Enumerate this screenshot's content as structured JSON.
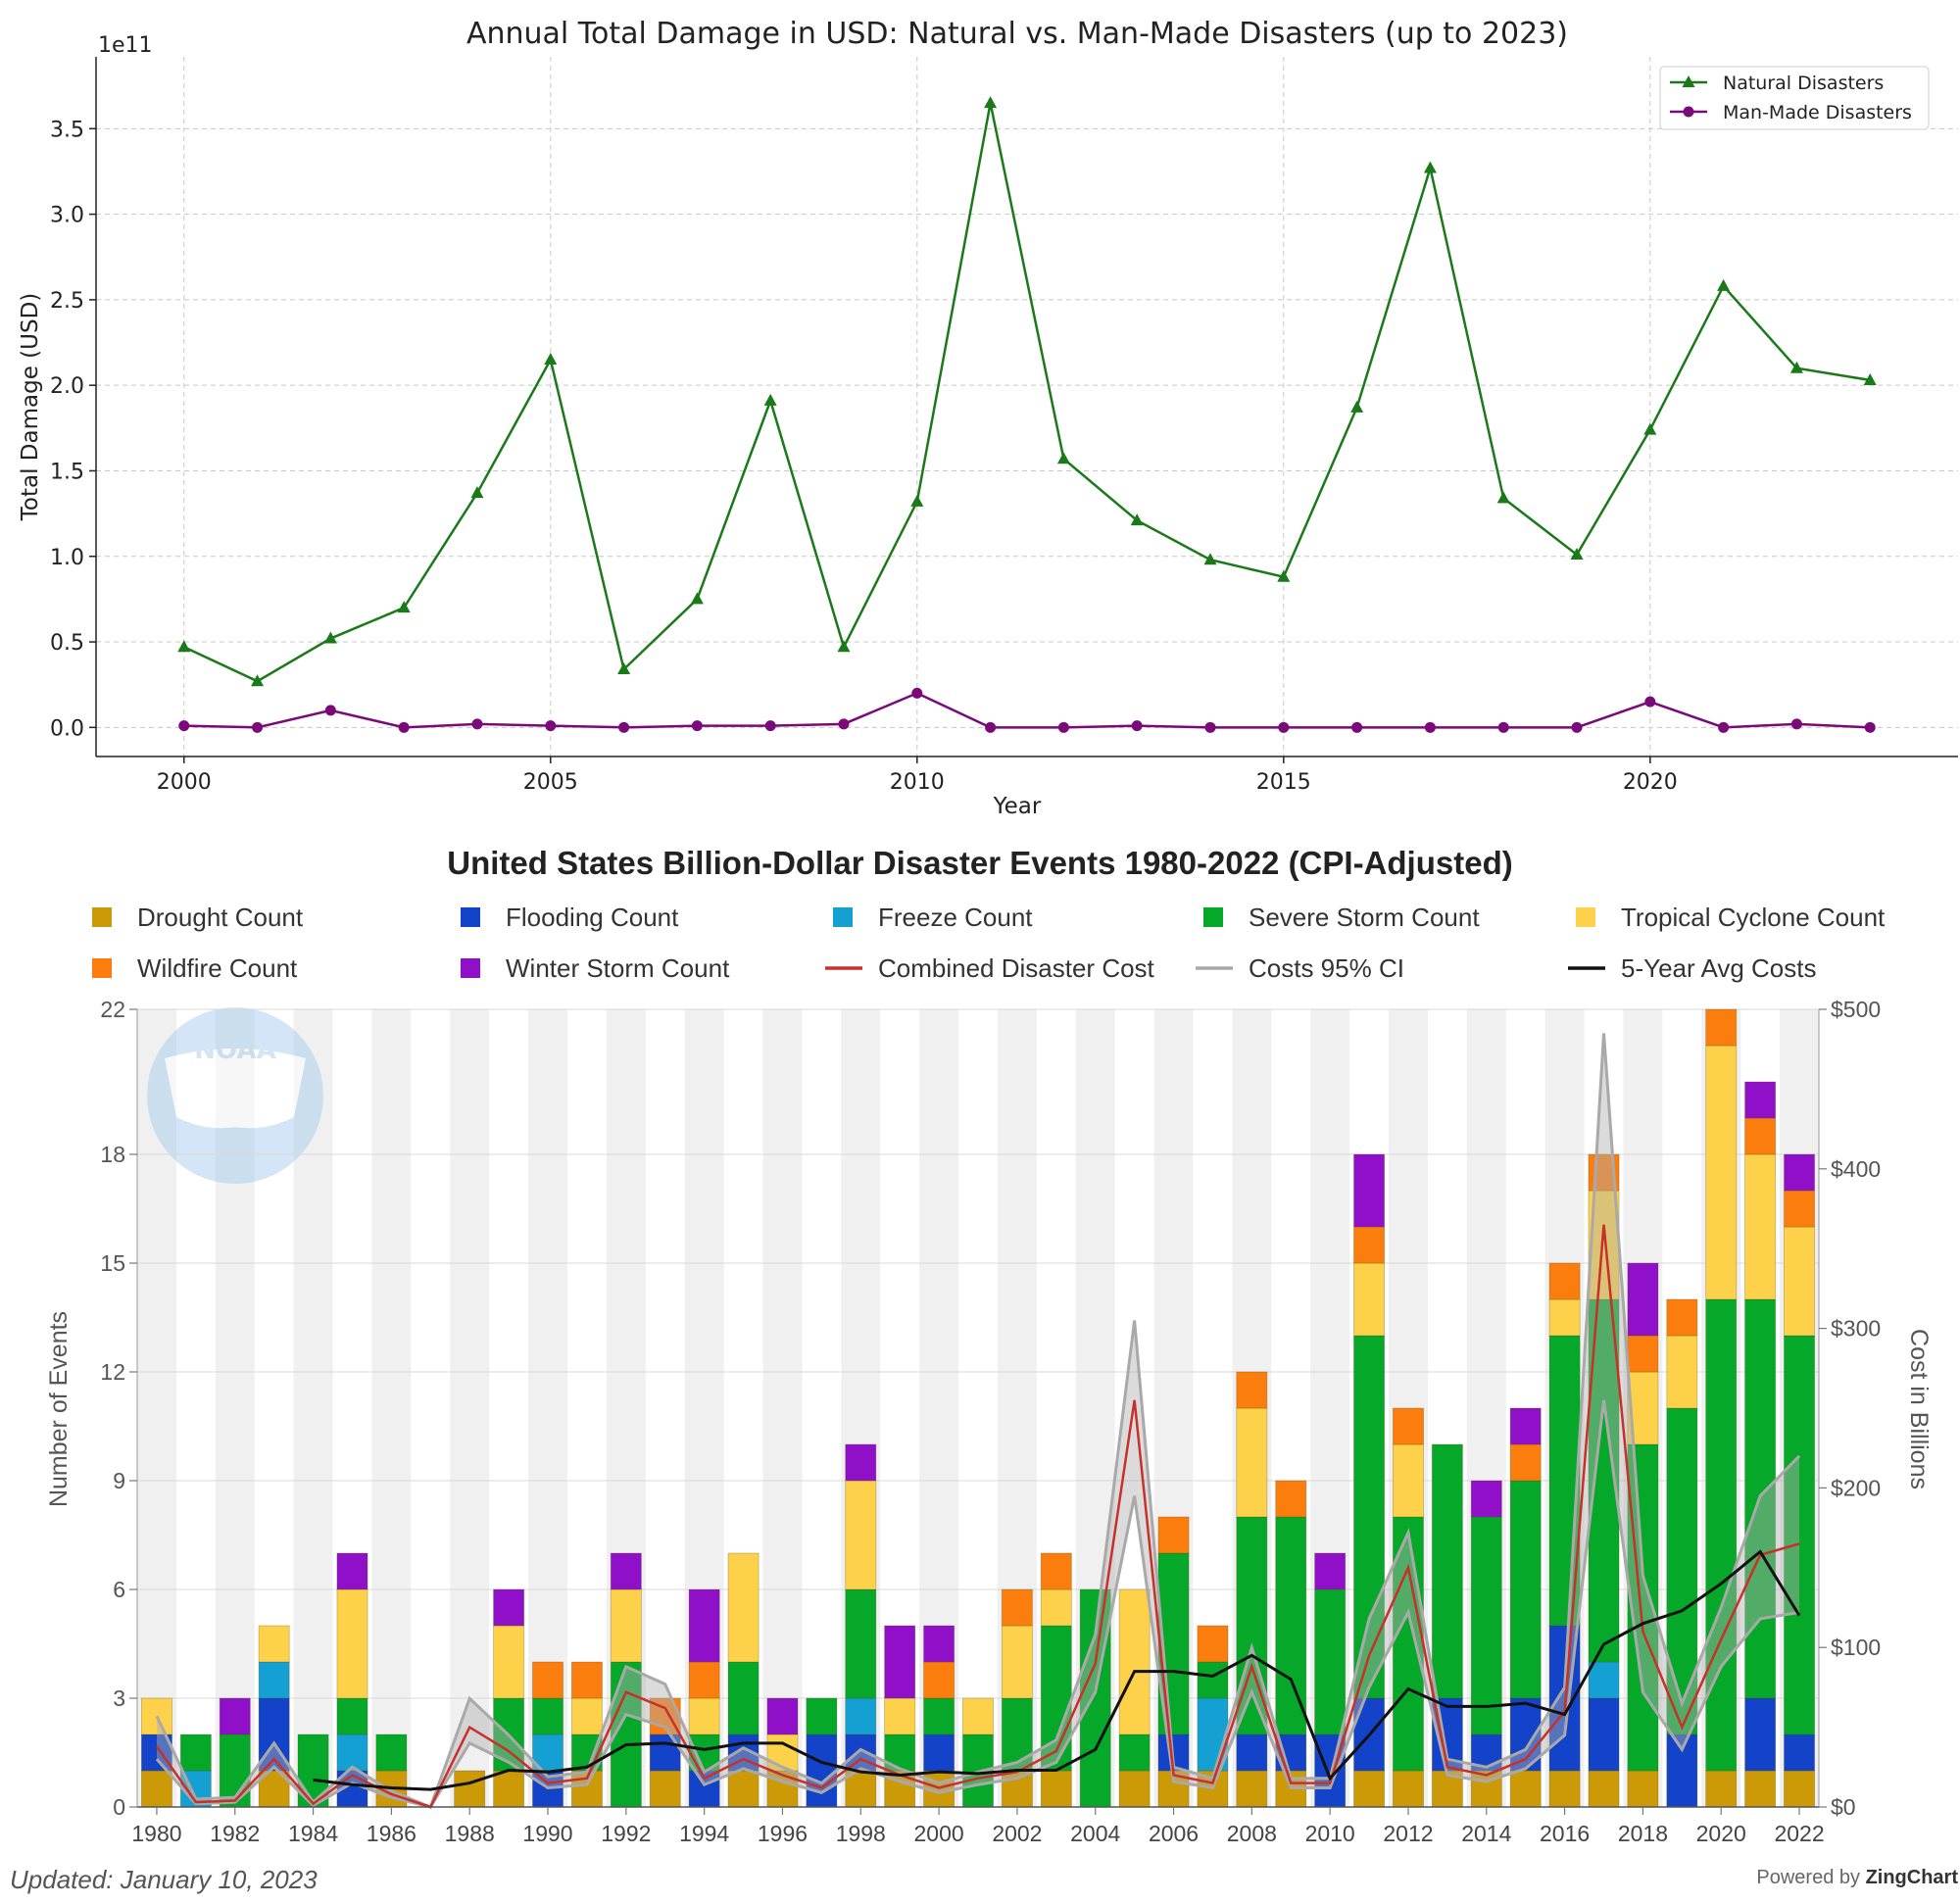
{
  "chart_data": [
    {
      "type": "line",
      "title": "Annual Total Damage in USD: Natural vs. Man-Made Disasters (up to 2023)",
      "xlabel": "Year",
      "ylabel": "Total Damage (USD)",
      "y_scale_label": "1e11",
      "ylim": [
        -0.17,
        3.92
      ],
      "xlim": [
        1998.8,
        2024.2
      ],
      "x_ticks": [
        "2000",
        "2005",
        "2010",
        "2015",
        "2020"
      ],
      "y_ticks": [
        "0.0",
        "0.5",
        "1.0",
        "1.5",
        "2.0",
        "2.5",
        "3.0",
        "3.5"
      ],
      "grid": true,
      "legend_position": "top-right",
      "x": [
        2000,
        2001,
        2002,
        2003,
        2004,
        2005,
        2006,
        2007,
        2008,
        2009,
        2010,
        2011,
        2012,
        2013,
        2014,
        2015,
        2016,
        2017,
        2018,
        2019,
        2020,
        2021,
        2022,
        2023
      ],
      "series": [
        {
          "name": "Natural Disasters",
          "color": "#1a7a1a",
          "marker": "triangle",
          "values": [
            0.47,
            0.27,
            0.52,
            0.7,
            1.37,
            2.15,
            0.34,
            0.75,
            1.91,
            0.47,
            1.32,
            3.65,
            1.57,
            1.21,
            0.98,
            0.88,
            1.87,
            3.27,
            1.34,
            1.01,
            1.74,
            2.58,
            2.1,
            2.03
          ]
        },
        {
          "name": "Man-Made Disasters",
          "color": "#7a0a7a",
          "marker": "circle",
          "values": [
            0.01,
            0.0,
            0.1,
            0.0,
            0.02,
            0.01,
            0.0,
            0.01,
            0.01,
            0.02,
            0.2,
            0.0,
            0.0,
            0.01,
            0.0,
            0.0,
            0.0,
            0.0,
            0.0,
            0.0,
            0.15,
            0.0,
            0.02,
            0.0
          ]
        }
      ]
    },
    {
      "type": "bar",
      "title": "United States Billion-Dollar Disaster Events 1980-2022 (CPI-Adjusted)",
      "ylabel": "Number of Events",
      "y2label": "Cost in Billions",
      "ylim": [
        0,
        22
      ],
      "y2lim": [
        0,
        500
      ],
      "y_ticks": [
        "0",
        "3",
        "6",
        "9",
        "12",
        "15",
        "18",
        "22"
      ],
      "y2_ticks": [
        "$0",
        "$100",
        "$200",
        "$300",
        "$400",
        "$500"
      ],
      "x_ticks": [
        "1980",
        "1982",
        "1984",
        "1986",
        "1988",
        "1990",
        "1992",
        "1994",
        "1996",
        "1998",
        "2000",
        "2002",
        "2004",
        "2006",
        "2008",
        "2010",
        "2012",
        "2014",
        "2016",
        "2018",
        "2020",
        "2022"
      ],
      "categories": [
        1980,
        1981,
        1982,
        1983,
        1984,
        1985,
        1986,
        1987,
        1988,
        1989,
        1990,
        1991,
        1992,
        1993,
        1994,
        1995,
        1996,
        1997,
        1998,
        1999,
        2000,
        2001,
        2002,
        2003,
        2004,
        2005,
        2006,
        2007,
        2008,
        2009,
        2010,
        2011,
        2012,
        2013,
        2014,
        2015,
        2016,
        2017,
        2018,
        2019,
        2020,
        2021,
        2022
      ],
      "stacked_series": [
        {
          "name": "Drought Count",
          "color": "#cc9a06",
          "values": [
            1,
            0,
            0,
            1,
            0,
            0,
            1,
            0,
            1,
            1,
            0,
            1,
            0,
            1,
            0,
            1,
            1,
            0,
            1,
            1,
            1,
            0,
            1,
            1,
            0,
            1,
            1,
            1,
            1,
            1,
            0,
            1,
            1,
            1,
            1,
            1,
            1,
            1,
            1,
            0,
            1,
            1,
            1
          ]
        },
        {
          "name": "Flooding Count",
          "color": "#1243c8",
          "values": [
            1,
            0,
            0,
            2,
            0,
            1,
            0,
            0,
            0,
            0,
            1,
            0,
            0,
            1,
            1,
            1,
            0,
            2,
            1,
            0,
            1,
            0,
            0,
            0,
            0,
            0,
            1,
            0,
            1,
            1,
            2,
            2,
            0,
            2,
            1,
            2,
            4,
            2,
            0,
            2,
            0,
            2,
            1
          ]
        },
        {
          "name": "Freeze Count",
          "color": "#14a0d2",
          "values": [
            0,
            1,
            0,
            1,
            0,
            1,
            0,
            0,
            0,
            0,
            1,
            0,
            0,
            0,
            0,
            0,
            0,
            0,
            1,
            0,
            0,
            0,
            0,
            0,
            0,
            0,
            0,
            2,
            0,
            0,
            0,
            0,
            0,
            0,
            0,
            0,
            0,
            1,
            0,
            0,
            0,
            0,
            0
          ]
        },
        {
          "name": "Severe Storm Count",
          "color": "#06a82a",
          "values": [
            0,
            1,
            2,
            0,
            2,
            1,
            1,
            0,
            0,
            2,
            1,
            1,
            4,
            0,
            1,
            2,
            0,
            1,
            3,
            1,
            1,
            2,
            2,
            4,
            6,
            1,
            5,
            1,
            6,
            6,
            4,
            10,
            7,
            7,
            6,
            6,
            8,
            10,
            9,
            9,
            13,
            11,
            11
          ]
        },
        {
          "name": "Tropical Cyclone Count",
          "color": "#fdd14a",
          "values": [
            1,
            0,
            0,
            1,
            0,
            3,
            0,
            0,
            0,
            2,
            0,
            1,
            2,
            0,
            1,
            3,
            1,
            0,
            3,
            1,
            0,
            1,
            2,
            1,
            0,
            4,
            0,
            0,
            3,
            0,
            0,
            2,
            2,
            0,
            0,
            0,
            1,
            3,
            2,
            2,
            7,
            4,
            3
          ]
        },
        {
          "name": "Wildfire Count",
          "color": "#fb7d0d",
          "values": [
            0,
            0,
            0,
            0,
            0,
            0,
            0,
            0,
            0,
            0,
            1,
            1,
            0,
            1,
            1,
            0,
            0,
            0,
            0,
            0,
            1,
            0,
            1,
            1,
            0,
            0,
            1,
            1,
            1,
            1,
            0,
            1,
            1,
            0,
            0,
            1,
            1,
            1,
            1,
            1,
            1,
            1,
            1
          ]
        },
        {
          "name": "Winter Storm Count",
          "color": "#8f10c8",
          "values": [
            0,
            0,
            1,
            0,
            0,
            1,
            0,
            0,
            0,
            1,
            0,
            0,
            1,
            0,
            2,
            0,
            1,
            0,
            1,
            2,
            1,
            0,
            0,
            0,
            0,
            0,
            0,
            0,
            0,
            0,
            1,
            2,
            0,
            0,
            1,
            1,
            0,
            0,
            2,
            0,
            0,
            1,
            1
          ]
        }
      ],
      "line_series": [
        {
          "name": "Combined Disaster Cost",
          "color": "#c8302a",
          "values": [
            38,
            3,
            4,
            30,
            2,
            20,
            8,
            0,
            50,
            35,
            15,
            18,
            72,
            62,
            18,
            30,
            20,
            12,
            30,
            20,
            12,
            18,
            22,
            35,
            90,
            255,
            20,
            15,
            88,
            15,
            15,
            95,
            150,
            25,
            20,
            30,
            60,
            365,
            110,
            50,
            105,
            158,
            165
          ]
        },
        {
          "name": "Costs 95% CI",
          "color": "#a9a9a9",
          "lower": [
            30,
            2,
            3,
            25,
            1,
            15,
            6,
            0,
            40,
            28,
            12,
            14,
            58,
            50,
            14,
            24,
            16,
            9,
            24,
            16,
            9,
            14,
            18,
            28,
            72,
            195,
            16,
            12,
            72,
            12,
            12,
            75,
            122,
            20,
            16,
            24,
            45,
            255,
            72,
            36,
            88,
            118,
            122
          ],
          "upper": [
            57,
            5,
            6,
            40,
            3,
            25,
            10,
            0,
            68,
            45,
            19,
            22,
            88,
            77,
            22,
            37,
            25,
            15,
            36,
            24,
            15,
            22,
            28,
            42,
            108,
            305,
            25,
            18,
            100,
            18,
            18,
            118,
            172,
            30,
            25,
            36,
            75,
            485,
            145,
            65,
            125,
            195,
            220
          ]
        },
        {
          "name": "5-Year Avg Costs",
          "color": "#111111",
          "values": [
            null,
            null,
            null,
            null,
            17,
            14,
            12,
            11,
            15,
            23,
            22,
            25,
            39,
            40,
            36,
            40,
            40,
            28,
            22,
            20,
            22,
            21,
            23,
            23,
            36,
            85,
            85,
            82,
            95,
            80,
            18,
            45,
            74,
            63,
            63,
            65,
            58,
            102,
            115,
            123,
            140,
            160,
            120
          ]
        }
      ],
      "legend_position": "top"
    }
  ],
  "footer": {
    "updated": "Updated: January 10, 2023",
    "powered_by": "Powered by ",
    "powered_brand": "ZingChart"
  },
  "watermark": "NOAA"
}
